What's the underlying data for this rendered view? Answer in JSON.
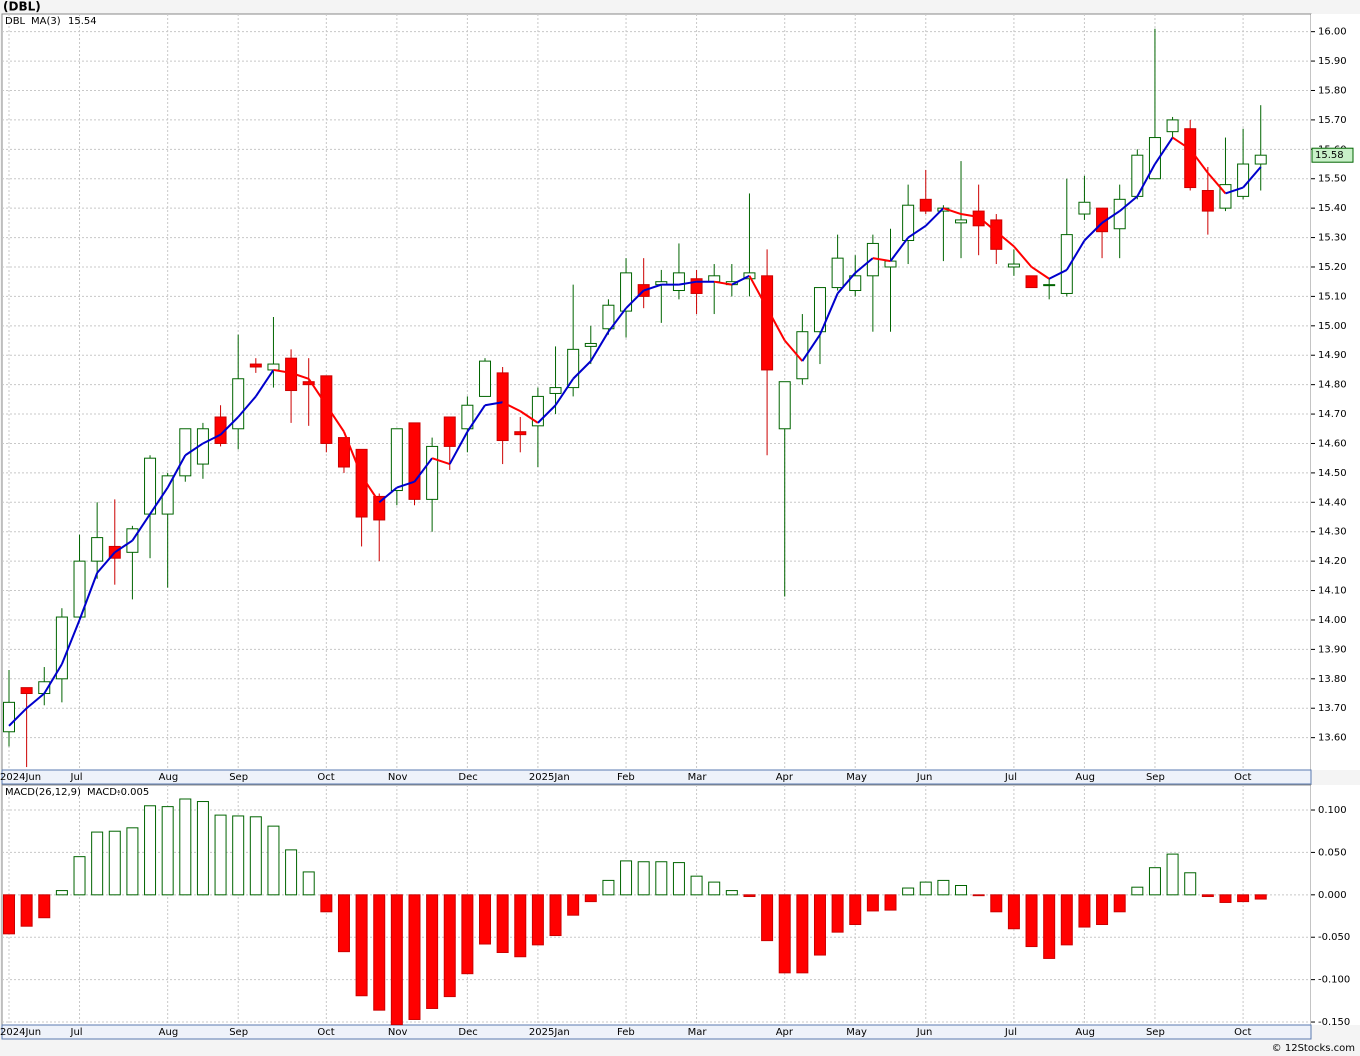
{
  "chart_data": [
    {
      "type": "candlestick",
      "title": "(DBL)",
      "ticker": "DBL",
      "categories": [
        "2024Jun",
        null,
        null,
        null,
        "Jul",
        null,
        null,
        null,
        null,
        "Aug",
        null,
        null,
        null,
        "Sep",
        null,
        null,
        null,
        null,
        "Oct",
        null,
        null,
        null,
        "Nov",
        null,
        null,
        null,
        "Dec",
        null,
        null,
        null,
        "2025Jan",
        null,
        null,
        null,
        null,
        "Feb",
        null,
        null,
        null,
        "Mar",
        null,
        null,
        null,
        null,
        "Apr",
        null,
        null,
        null,
        "May",
        null,
        null,
        null,
        "Jun",
        null,
        null,
        null,
        null,
        "Jul",
        null,
        null,
        null,
        "Aug",
        null,
        null,
        null,
        "Sep",
        null,
        null,
        null,
        null,
        "Oct",
        null
      ],
      "open": [
        13.62,
        13.77,
        13.75,
        13.8,
        14.01,
        14.2,
        14.25,
        14.23,
        14.36,
        14.36,
        14.49,
        14.53,
        14.69,
        14.65,
        14.87,
        14.85,
        14.89,
        14.81,
        14.83,
        14.62,
        14.58,
        14.42,
        14.44,
        14.67,
        14.41,
        14.69,
        14.65,
        14.76,
        14.84,
        14.64,
        14.66,
        14.77,
        14.79,
        14.93,
        14.99,
        15.05,
        15.14,
        15.14,
        15.12,
        15.16,
        15.15,
        15.14,
        15.16,
        15.17,
        14.65,
        14.82,
        14.98,
        15.13,
        15.12,
        15.17,
        15.2,
        15.29,
        15.43,
        15.39,
        15.35,
        15.39,
        15.36,
        15.2,
        15.17,
        15.14,
        15.11,
        15.38,
        15.4,
        15.33,
        15.44,
        15.5,
        15.66,
        15.67,
        15.46,
        15.4,
        15.44,
        15.55
      ],
      "high": [
        13.83,
        13.77,
        13.84,
        14.04,
        14.29,
        14.4,
        14.41,
        14.32,
        14.56,
        14.5,
        14.65,
        14.67,
        14.73,
        14.97,
        14.89,
        15.03,
        14.92,
        14.89,
        14.83,
        14.62,
        14.58,
        14.43,
        14.65,
        14.67,
        14.62,
        14.69,
        14.76,
        14.89,
        14.86,
        14.69,
        14.79,
        14.93,
        15.14,
        15.0,
        15.09,
        15.23,
        15.23,
        15.19,
        15.28,
        15.19,
        15.21,
        15.21,
        15.45,
        15.26,
        14.81,
        15.04,
        15.13,
        15.31,
        15.24,
        15.31,
        15.33,
        15.48,
        15.53,
        15.41,
        15.56,
        15.48,
        15.38,
        15.26,
        15.17,
        15.16,
        15.5,
        15.51,
        15.4,
        15.48,
        15.6,
        16.01,
        15.71,
        15.7,
        15.54,
        15.64,
        15.67,
        15.75
      ],
      "low": [
        13.57,
        13.5,
        13.71,
        13.72,
        14.0,
        14.14,
        14.12,
        14.07,
        14.21,
        14.11,
        14.47,
        14.48,
        14.59,
        14.58,
        14.84,
        14.79,
        14.67,
        14.66,
        14.57,
        14.5,
        14.25,
        14.2,
        14.39,
        14.39,
        14.3,
        14.51,
        14.57,
        14.76,
        14.53,
        14.57,
        14.52,
        14.7,
        14.76,
        14.87,
        14.97,
        14.96,
        15.06,
        15.01,
        15.09,
        15.04,
        15.04,
        15.1,
        15.1,
        14.56,
        14.08,
        14.8,
        14.87,
        15.12,
        15.1,
        14.98,
        14.98,
        15.21,
        15.38,
        15.22,
        15.23,
        15.24,
        15.21,
        15.17,
        15.13,
        15.09,
        15.1,
        15.36,
        15.23,
        15.23,
        15.43,
        15.5,
        15.64,
        15.46,
        15.31,
        15.39,
        15.43,
        15.46
      ],
      "close": [
        13.72,
        13.75,
        13.79,
        14.01,
        14.2,
        14.28,
        14.21,
        14.31,
        14.55,
        14.49,
        14.65,
        14.65,
        14.6,
        14.82,
        14.86,
        14.87,
        14.78,
        14.8,
        14.6,
        14.52,
        14.35,
        14.34,
        14.65,
        14.41,
        14.59,
        14.59,
        14.73,
        14.88,
        14.61,
        14.63,
        14.76,
        14.79,
        14.92,
        14.94,
        15.07,
        15.18,
        15.1,
        15.15,
        15.18,
        15.11,
        15.17,
        15.15,
        15.18,
        14.85,
        14.81,
        14.98,
        15.13,
        15.23,
        15.17,
        15.28,
        15.22,
        15.41,
        15.39,
        15.4,
        15.36,
        15.34,
        15.26,
        15.21,
        15.13,
        15.14,
        15.31,
        15.42,
        15.32,
        15.43,
        15.58,
        15.64,
        15.7,
        15.47,
        15.39,
        15.48,
        15.55,
        15.58
      ],
      "up_color": "#ffffff",
      "up_edge": "#006400",
      "down_color": "#ff0000",
      "down_edge": "#cc0000",
      "ma": {
        "name": "MA(3)",
        "up_color": "#0000cc",
        "down_color": "#ff0000",
        "values": [
          13.64,
          13.7,
          13.75,
          13.85,
          14.0,
          14.16,
          14.23,
          14.27,
          14.36,
          14.45,
          14.56,
          14.6,
          14.63,
          14.69,
          14.76,
          14.85,
          14.84,
          14.82,
          14.73,
          14.64,
          14.49,
          14.4,
          14.45,
          14.47,
          14.55,
          14.53,
          14.64,
          14.73,
          14.74,
          14.71,
          14.67,
          14.73,
          14.82,
          14.88,
          14.98,
          15.06,
          15.12,
          15.14,
          15.14,
          15.15,
          15.15,
          15.14,
          15.17,
          15.06,
          14.95,
          14.88,
          14.97,
          15.11,
          15.18,
          15.23,
          15.22,
          15.3,
          15.34,
          15.4,
          15.38,
          15.37,
          15.32,
          15.27,
          15.2,
          15.16,
          15.19,
          15.29,
          15.35,
          15.39,
          15.44,
          15.55,
          15.64,
          15.6,
          15.52,
          15.45,
          15.47,
          15.54
        ]
      },
      "ylim": [
        13.49,
        16.06
      ],
      "yticks": [
        {
          "value": 13.6,
          "label": "13.60"
        },
        {
          "value": 13.7,
          "label": "13.70"
        },
        {
          "value": 13.8,
          "label": "13.80"
        },
        {
          "value": 13.9,
          "label": "13.90"
        },
        {
          "value": 14.0,
          "label": "14.00"
        },
        {
          "value": 14.1,
          "label": "14.10"
        },
        {
          "value": 14.2,
          "label": "14.20"
        },
        {
          "value": 14.3,
          "label": "14.30"
        },
        {
          "value": 14.4,
          "label": "14.40"
        },
        {
          "value": 14.5,
          "label": "14.50"
        },
        {
          "value": 14.6,
          "label": "14.60"
        },
        {
          "value": 14.7,
          "label": "14.70"
        },
        {
          "value": 14.8,
          "label": "14.80"
        },
        {
          "value": 14.9,
          "label": "14.90"
        },
        {
          "value": 15.0,
          "label": "15.00"
        },
        {
          "value": 15.1,
          "label": "15.10"
        },
        {
          "value": 15.2,
          "label": "15.20"
        },
        {
          "value": 15.3,
          "label": "15.30"
        },
        {
          "value": 15.4,
          "label": "15.40"
        },
        {
          "value": 15.5,
          "label": "15.50"
        },
        {
          "value": 15.6,
          "label": "15.60"
        },
        {
          "value": 15.7,
          "label": "15.70"
        },
        {
          "value": 15.8,
          "label": "15.80"
        },
        {
          "value": 15.9,
          "label": "15.90"
        },
        {
          "value": 16.0,
          "label": "16.00"
        }
      ],
      "grid": true
    },
    {
      "type": "histogram",
      "name": "MACD(26,12,9)",
      "label": "MACD:",
      "pos_color": "#ffffff",
      "pos_edge": "#006400",
      "neg_color": "#ff0000",
      "neg_edge": "#cc0000",
      "values": [
        -0.046,
        -0.037,
        -0.027,
        0.005,
        0.045,
        0.074,
        0.075,
        0.079,
        0.105,
        0.104,
        0.113,
        0.11,
        0.094,
        0.093,
        0.092,
        0.081,
        0.053,
        0.027,
        -0.02,
        -0.067,
        -0.119,
        -0.136,
        -0.153,
        -0.147,
        -0.134,
        -0.12,
        -0.093,
        -0.058,
        -0.068,
        -0.073,
        -0.059,
        -0.048,
        -0.024,
        -0.008,
        0.017,
        0.04,
        0.039,
        0.039,
        0.038,
        0.022,
        0.015,
        0.005,
        -0.002,
        -0.054,
        -0.092,
        -0.092,
        -0.071,
        -0.044,
        -0.035,
        -0.019,
        -0.018,
        0.008,
        0.015,
        0.017,
        0.011,
        -0.001,
        -0.02,
        -0.04,
        -0.061,
        -0.075,
        -0.059,
        -0.038,
        -0.035,
        -0.02,
        0.009,
        0.032,
        0.048,
        0.026,
        -0.002,
        -0.009,
        -0.008,
        -0.005
      ],
      "ylim": [
        -0.1535,
        0.1295
      ],
      "yticks": [
        {
          "value": 0.1,
          "label": "0.100"
        },
        {
          "value": 0.05,
          "label": "0.050"
        },
        {
          "value": 0,
          "label": "0.000"
        },
        {
          "value": -0.05,
          "label": "-0.050"
        },
        {
          "value": -0.1,
          "label": "-0.100"
        },
        {
          "value": -0.15,
          "label": "-0.150"
        }
      ],
      "grid": true
    }
  ],
  "footer": "© 12Stocks.com"
}
